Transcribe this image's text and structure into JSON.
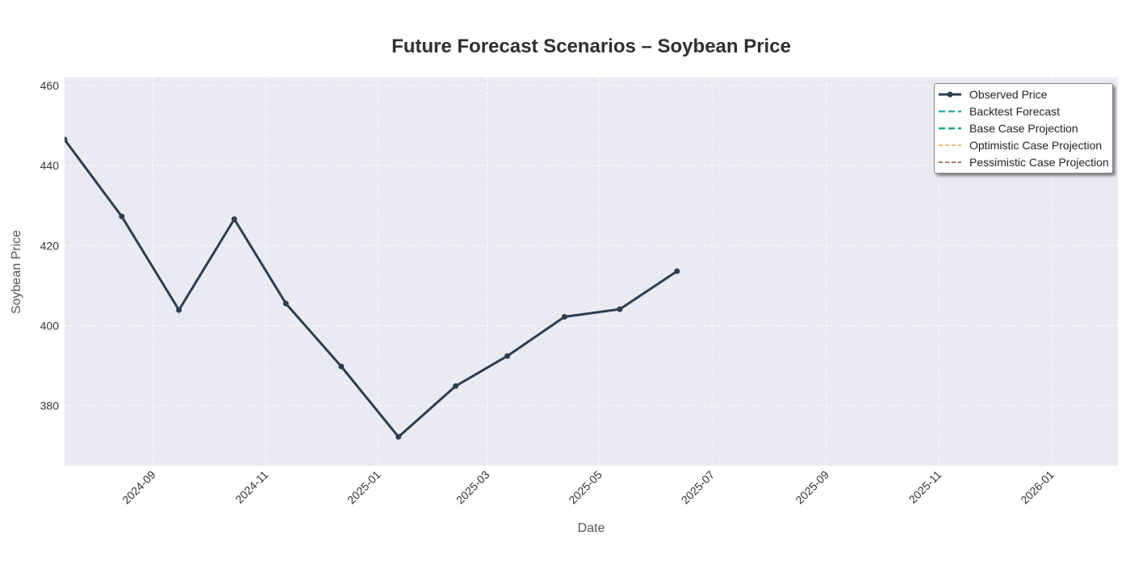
{
  "chart_data": {
    "type": "line",
    "title": "Future Forecast Scenarios – Soybean Price",
    "xlabel": "Date",
    "ylabel": "Soybean Price",
    "xlim": [
      "2024-07-15",
      "2026-02-06"
    ],
    "ylim": [
      365,
      462
    ],
    "x_ticks": [
      "2024-09",
      "2024-11",
      "2025-01",
      "2025-03",
      "2025-05",
      "2025-07",
      "2025-09",
      "2025-11",
      "2026-01"
    ],
    "y_ticks": [
      380,
      400,
      420,
      440,
      460
    ],
    "grid": true,
    "legend_position": "top-right",
    "series": [
      {
        "name": "Observed Price",
        "color": "#2c3e50",
        "style": "solid-marker",
        "x": [
          "2024-07-15",
          "2024-08-15",
          "2024-09-15",
          "2024-10-15",
          "2024-11-12",
          "2024-12-12",
          "2025-01-12",
          "2025-02-12",
          "2025-03-12",
          "2025-04-12",
          "2025-05-12",
          "2025-06-12"
        ],
        "y": [
          446.5,
          427.3,
          403.9,
          426.6,
          405.5,
          389.8,
          372.2,
          384.9,
          392.4,
          402.2,
          404.1,
          413.6
        ]
      },
      {
        "name": "Backtest Forecast",
        "color": "#3aa6a0",
        "style": "dashed-wide",
        "x": [],
        "y": []
      },
      {
        "name": "Base Case Projection",
        "color": "#16a085",
        "style": "dashed-wide",
        "x": [],
        "y": []
      },
      {
        "name": "Optimistic Case Projection",
        "color": "#d4a050",
        "style": "dashed",
        "x": [],
        "y": []
      },
      {
        "name": "Pessimistic Case Projection",
        "color": "#8e4a2a",
        "style": "dashed",
        "x": [],
        "y": []
      }
    ]
  }
}
